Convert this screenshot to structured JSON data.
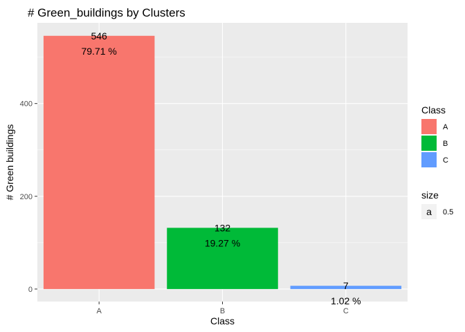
{
  "chart_data": {
    "type": "bar",
    "title": "# Green_buildings by Clusters",
    "xlabel": "Class",
    "ylabel": "# Green buildings",
    "categories": [
      "A",
      "B",
      "C"
    ],
    "values": [
      546,
      132,
      7
    ],
    "data_labels": [
      {
        "count": "546",
        "pct": "79.71 %"
      },
      {
        "count": "132",
        "pct": "19.27 %"
      },
      {
        "count": "7",
        "pct": "1.02 %"
      }
    ],
    "colors": [
      "#F8766D",
      "#00BA38",
      "#619CFF"
    ],
    "yticks": [
      0,
      200,
      400
    ],
    "ylim": [
      -27,
      574
    ],
    "grid": true,
    "panel_background": "#EBEBEB",
    "legend": {
      "placement": "right",
      "fill_title": "Class",
      "fill_entries": [
        "A",
        "B",
        "C"
      ],
      "size_title": "size",
      "size_key_glyph": "a",
      "size_value": "0.5"
    }
  }
}
